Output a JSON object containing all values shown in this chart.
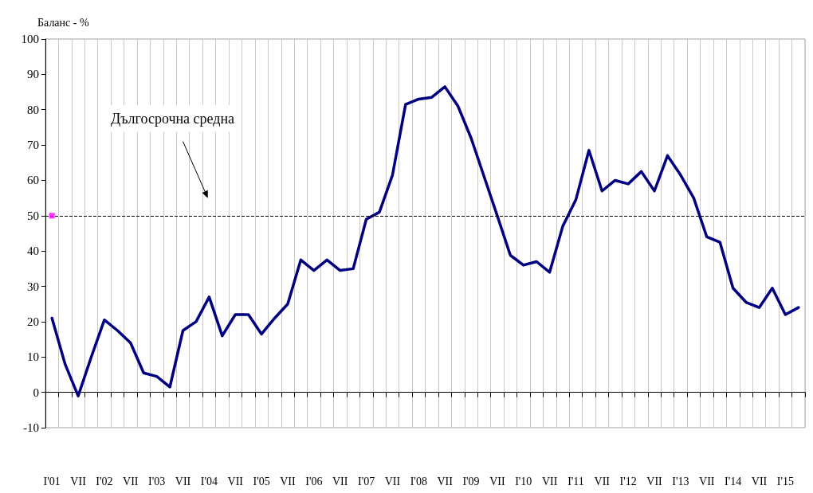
{
  "chart_data": {
    "type": "line",
    "ylabel": "Баланс - %",
    "categories": [
      "I'01",
      null,
      "VII",
      null,
      "I'02",
      null,
      "VII",
      null,
      "I'03",
      null,
      "VII",
      null,
      "I'04",
      null,
      "VII",
      null,
      "I'05",
      null,
      "VII",
      null,
      "I'06",
      null,
      "VII",
      null,
      "I'07",
      null,
      "VII",
      null,
      "I'08",
      null,
      "VII",
      null,
      "I'09",
      null,
      "VII",
      null,
      "I'10",
      null,
      "VII",
      null,
      "I'11",
      null,
      "VII",
      null,
      "I'12",
      null,
      "VII",
      null,
      "I'13",
      null,
      "VII",
      null,
      "I'14",
      null,
      "VII",
      null,
      "I'15",
      null
    ],
    "series": [
      {
        "color": "#000080",
        "marker": "none",
        "values": [
          21,
          8,
          -1,
          10,
          20.5,
          17.5,
          14,
          5.5,
          4.5,
          1.5,
          17.5,
          20,
          27,
          16,
          22,
          22,
          16.5,
          21,
          25,
          37.5,
          34.5,
          37.5,
          34.5,
          35,
          49,
          51,
          61.5,
          81.5,
          83,
          83.5,
          86.5,
          81,
          72,
          61,
          50,
          38.8,
          36,
          37,
          34,
          47,
          54.5,
          68.5,
          57,
          60,
          59,
          62.5,
          57,
          67,
          61.5,
          55,
          44,
          42.5,
          29.5,
          25.5,
          24,
          29.5,
          22,
          24
        ]
      },
      {
        "type": "scatter",
        "color": "#ff00ff",
        "marker": "square",
        "values": [
          50,
          null,
          null,
          null,
          null,
          null,
          null,
          null,
          null,
          null,
          null,
          null,
          null,
          null,
          null,
          null,
          null,
          null,
          null,
          null,
          null,
          null,
          null,
          null,
          null,
          null,
          null,
          null,
          null,
          null,
          null,
          null,
          null,
          null,
          null,
          null,
          null,
          null,
          null,
          null,
          null,
          null,
          null,
          null,
          null,
          null,
          null,
          null,
          null,
          null,
          null,
          null,
          null,
          null,
          null,
          null,
          null,
          null
        ]
      }
    ],
    "ylim": [
      -10,
      100
    ],
    "yticks": [
      -10,
      0,
      10,
      20,
      30,
      40,
      50,
      60,
      70,
      80,
      90,
      100
    ],
    "grid": "x",
    "ref_lines": [
      {
        "axis": "y",
        "value": 50,
        "label": "Дългосрочна средна",
        "color": "#000000",
        "line_style": "dashed"
      }
    ]
  }
}
